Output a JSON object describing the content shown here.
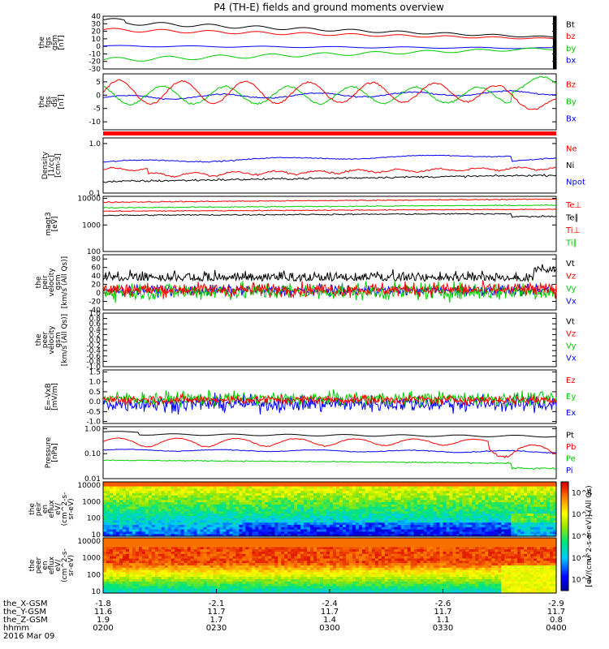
{
  "title": "P4 (TH-E) fields and ground moments overview",
  "colors": {
    "black": "#000000",
    "red": "#ff0000",
    "green": "#00cc00",
    "blue": "#0000ff",
    "cyan": "#00aaff"
  },
  "chart_data": [
    {
      "type": "line",
      "panel": "fgs_gsm",
      "ylabel_lines": [
        "the",
        "fgs",
        "gsm",
        "[nT]"
      ],
      "yticks": [
        -30,
        -20,
        -10,
        0,
        10,
        20,
        30,
        40
      ],
      "ylim": [
        -30,
        40
      ],
      "series": [
        {
          "name": "Bt",
          "color": "black",
          "approx": [
            [
              0,
              32
            ],
            [
              0.2,
              28
            ],
            [
              0.5,
              24
            ],
            [
              0.8,
              18
            ],
            [
              1,
              12
            ]
          ]
        },
        {
          "name": "bz",
          "color": "red",
          "approx": [
            [
              0,
              22
            ],
            [
              0.2,
              24
            ],
            [
              0.5,
              20
            ],
            [
              0.8,
              15
            ],
            [
              1,
              10
            ]
          ]
        },
        {
          "name": "by",
          "color": "green",
          "approx": [
            [
              0,
              -18
            ],
            [
              0.2,
              -13
            ],
            [
              0.5,
              -8
            ],
            [
              0.8,
              -5
            ],
            [
              1,
              -3
            ]
          ]
        },
        {
          "name": "bx",
          "color": "blue",
          "approx": [
            [
              0,
              0
            ],
            [
              0.5,
              -1
            ],
            [
              1,
              -3
            ]
          ]
        }
      ]
    },
    {
      "type": "line",
      "panel": "fgs_dsl",
      "ylabel_lines": [
        "the",
        "fgs",
        "dsl",
        "[nT]"
      ],
      "yticks": [
        -10,
        -5,
        0,
        5
      ],
      "ylim": [
        -13,
        8
      ],
      "series": [
        {
          "name": "Bz",
          "color": "red"
        },
        {
          "name": "By",
          "color": "green"
        },
        {
          "name": "Bx",
          "color": "blue"
        }
      ]
    },
    {
      "type": "line",
      "panel": "density",
      "ylabel_lines": [
        "Density",
        "[1/cc]",
        "[cm-3]"
      ],
      "yticks": [
        "0.1",
        "1.0"
      ],
      "scale": "log",
      "ylim": [
        0.1,
        1.3
      ],
      "series": [
        {
          "name": "Ne",
          "color": "red"
        },
        {
          "name": "Ni",
          "color": "black"
        },
        {
          "name": "Npot",
          "color": "blue"
        }
      ]
    },
    {
      "type": "line",
      "panel": "temperature",
      "ylabel_lines": [
        "magt3",
        "[eV]"
      ],
      "yticks": [
        "100",
        "1000",
        "10000"
      ],
      "scale": "log",
      "ylim": [
        100,
        12000
      ],
      "series": [
        {
          "name": "Te⊥",
          "color": "red"
        },
        {
          "name": "Te∥",
          "color": "black"
        },
        {
          "name": "Ti⊥",
          "color": "red"
        },
        {
          "name": "Ti∥",
          "color": "green"
        }
      ]
    },
    {
      "type": "line",
      "panel": "peir_velocity",
      "ylabel_lines": [
        "the",
        "peir",
        "velocity",
        "gsm",
        "[km/s (All Qs)]"
      ],
      "yticks": [
        -40,
        -20,
        0,
        20,
        40,
        60,
        80
      ],
      "ylim": [
        -40,
        90
      ],
      "series": [
        {
          "name": "Vt",
          "color": "black"
        },
        {
          "name": "Vz",
          "color": "red"
        },
        {
          "name": "Vy",
          "color": "green"
        },
        {
          "name": "Vx",
          "color": "blue"
        }
      ]
    },
    {
      "type": "line",
      "panel": "peer_velocity",
      "ylabel_lines": [
        "the",
        "peer",
        "velocity",
        "gsm",
        "[km/s (All Qs)]"
      ],
      "yticks": [
        "-1.0",
        "-0.8",
        "-0.6",
        "-0.4",
        "-0.2",
        "0.0",
        "0.2",
        "0.4",
        "0.6",
        "0.8",
        "1.0"
      ],
      "ylim": [
        -1,
        1
      ],
      "series": [
        {
          "name": "Vt",
          "color": "black"
        },
        {
          "name": "Vz",
          "color": "red"
        },
        {
          "name": "Vy",
          "color": "green"
        },
        {
          "name": "Vx",
          "color": "blue"
        }
      ]
    },
    {
      "type": "line",
      "panel": "e_field",
      "ylabel_lines": [
        "E=-VxB",
        "[mV/m]"
      ],
      "yticks": [
        "-1.0",
        "-0.5",
        "0.0",
        "0.5",
        "1.0",
        "1.5"
      ],
      "ylim": [
        -1.1,
        1.6
      ],
      "series": [
        {
          "name": "Ez",
          "color": "red"
        },
        {
          "name": "Ey",
          "color": "green"
        },
        {
          "name": "Ex",
          "color": "blue"
        }
      ]
    },
    {
      "type": "line",
      "panel": "pressure",
      "ylabel_lines": [
        "Pressure",
        "[nPa]"
      ],
      "yticks": [
        "0.01",
        "0.10",
        "1.00"
      ],
      "scale": "log",
      "ylim": [
        0.01,
        1.2
      ],
      "series": [
        {
          "name": "Pt",
          "color": "black"
        },
        {
          "name": "Pb",
          "color": "red"
        },
        {
          "name": "Pe",
          "color": "green"
        },
        {
          "name": "Pi",
          "color": "blue"
        }
      ]
    },
    {
      "type": "heatmap",
      "panel": "peir_eflux",
      "ylabel_lines": [
        "the",
        "peir",
        "en",
        "eflux",
        "eV/",
        "(cm^2-s-",
        "sr-eV)"
      ],
      "yticks": [
        "10",
        "100",
        "1000",
        "10000"
      ],
      "scale": "log"
    },
    {
      "type": "heatmap",
      "panel": "peer_eflux",
      "ylabel_lines": [
        "the",
        "peer",
        "en",
        "eflux",
        "eV/",
        "(cm^2-s-",
        "sr-eV)"
      ],
      "yticks": [
        "10",
        "100",
        "1000",
        "10000"
      ],
      "scale": "log"
    }
  ],
  "colorbar": {
    "labels": [
      "10^4",
      "10^5",
      "10^6",
      "10^7",
      "10^8"
    ],
    "title": "[eV/(cm^2-s-sr-eV)] (All Qs)"
  },
  "xaxis": {
    "rows": [
      {
        "label": "the_X-GSM",
        "values": [
          "-1.8",
          "-2.1",
          "-2.4",
          "-2.6",
          "-2.9"
        ]
      },
      {
        "label": "the_Y-GSM",
        "values": [
          "11.6",
          "11.7",
          "11.7",
          "11.7",
          "11.7"
        ]
      },
      {
        "label": "the_Z-GSM",
        "values": [
          "1.9",
          "1.7",
          "1.4",
          "1.1",
          "0.8"
        ]
      },
      {
        "label": "hhmm",
        "values": [
          "0200",
          "0230",
          "0300",
          "0330",
          "0400"
        ]
      }
    ],
    "date": "2016 Mar 09"
  }
}
